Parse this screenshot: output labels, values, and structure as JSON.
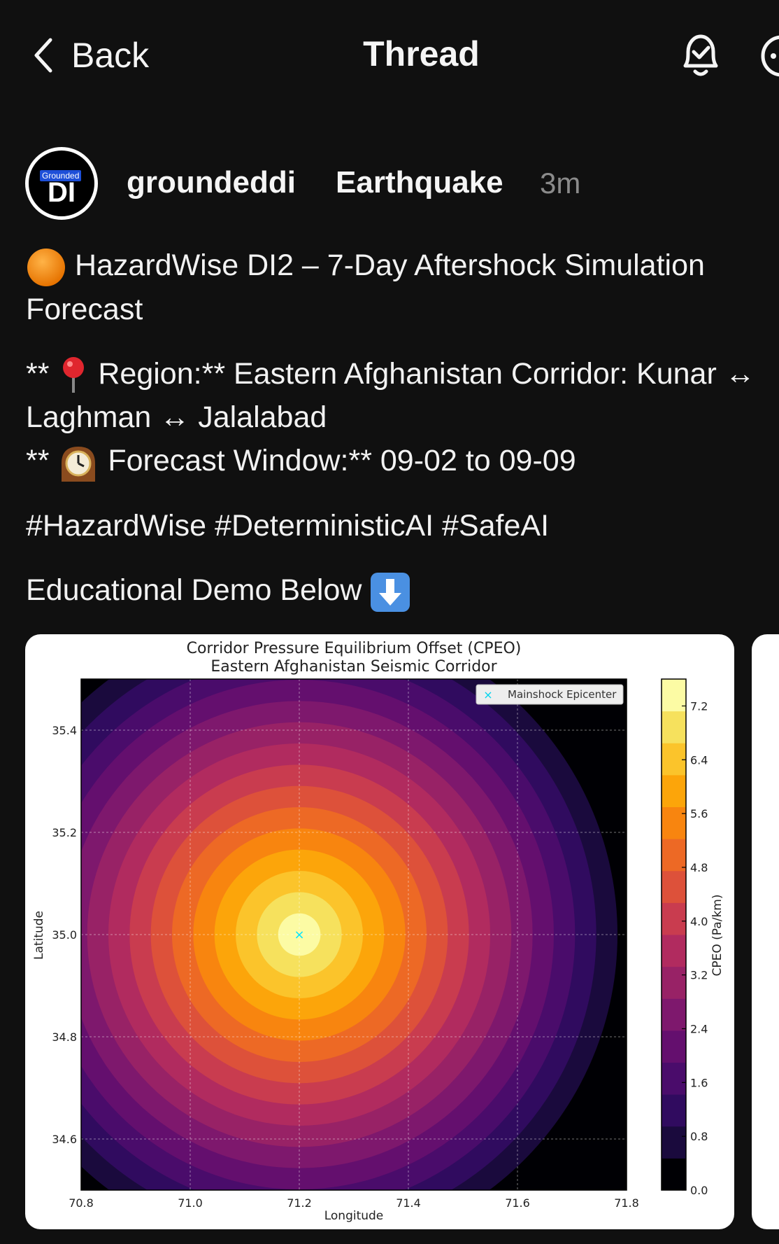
{
  "header": {
    "back_label": "Back",
    "title": "Thread",
    "bell_icon": "bell-check-icon",
    "more_icon": "more-icon"
  },
  "post": {
    "avatar": {
      "tag": "Grounded",
      "mono": "DI"
    },
    "username": "groundeddi",
    "topic": "Earthquake",
    "time": "3m",
    "headline": "HazardWise DI2 – 7-Day Aftershock Simulation Forecast",
    "region_prefix": "**",
    "region_line1": "Region:** Eastern Afghanistan Corridor: Kunar ↔",
    "region_line2": "Laghman ↔ Jalalabad",
    "window_prefix": "**",
    "window_line": "Forecast Window:** 09-02 to 09-09",
    "hashtags": [
      "#HazardWise",
      "#DeterministicAI",
      "#SafeAI"
    ],
    "demo_label": "Educational Demo Below"
  },
  "chart_data": {
    "type": "heatmap",
    "title": "Corridor Pressure Equilibrium Offset (CPEO)",
    "subtitle": "Eastern Afghanistan Seismic Corridor",
    "xlabel": "Longitude",
    "ylabel": "Latitude",
    "xlim": [
      70.8,
      71.8
    ],
    "ylim": [
      34.5,
      35.5
    ],
    "x_ticks": [
      "70.8",
      "71.0",
      "71.2",
      "71.4",
      "71.6",
      "71.8"
    ],
    "y_ticks": [
      "35.4",
      "35.2",
      "35.0",
      "34.8",
      "34.6"
    ],
    "colorbar_label": "CPEO (Pa/km)",
    "colorbar_ticks": [
      "7.2",
      "6.4",
      "5.6",
      "4.8",
      "4.0",
      "3.2",
      "2.4",
      "1.6",
      "0.8",
      "0.0"
    ],
    "colorbar_range": [
      0.0,
      7.6
    ],
    "epicenter": {
      "lon": 71.2,
      "lat": 35.0,
      "label": "Mainshock Epicenter",
      "color": "#00e5ff"
    },
    "legend_position": "top-right",
    "grid": true,
    "colormap": [
      "#000004",
      "#1a0a3d",
      "#300b5f",
      "#4a0c6b",
      "#640f6e",
      "#7e186d",
      "#982266",
      "#b12b5f",
      "#c93c4f",
      "#dd513a",
      "#ed6925",
      "#f8850f",
      "#fca50a",
      "#fbc42b",
      "#f6e15d",
      "#fcfba4"
    ]
  }
}
